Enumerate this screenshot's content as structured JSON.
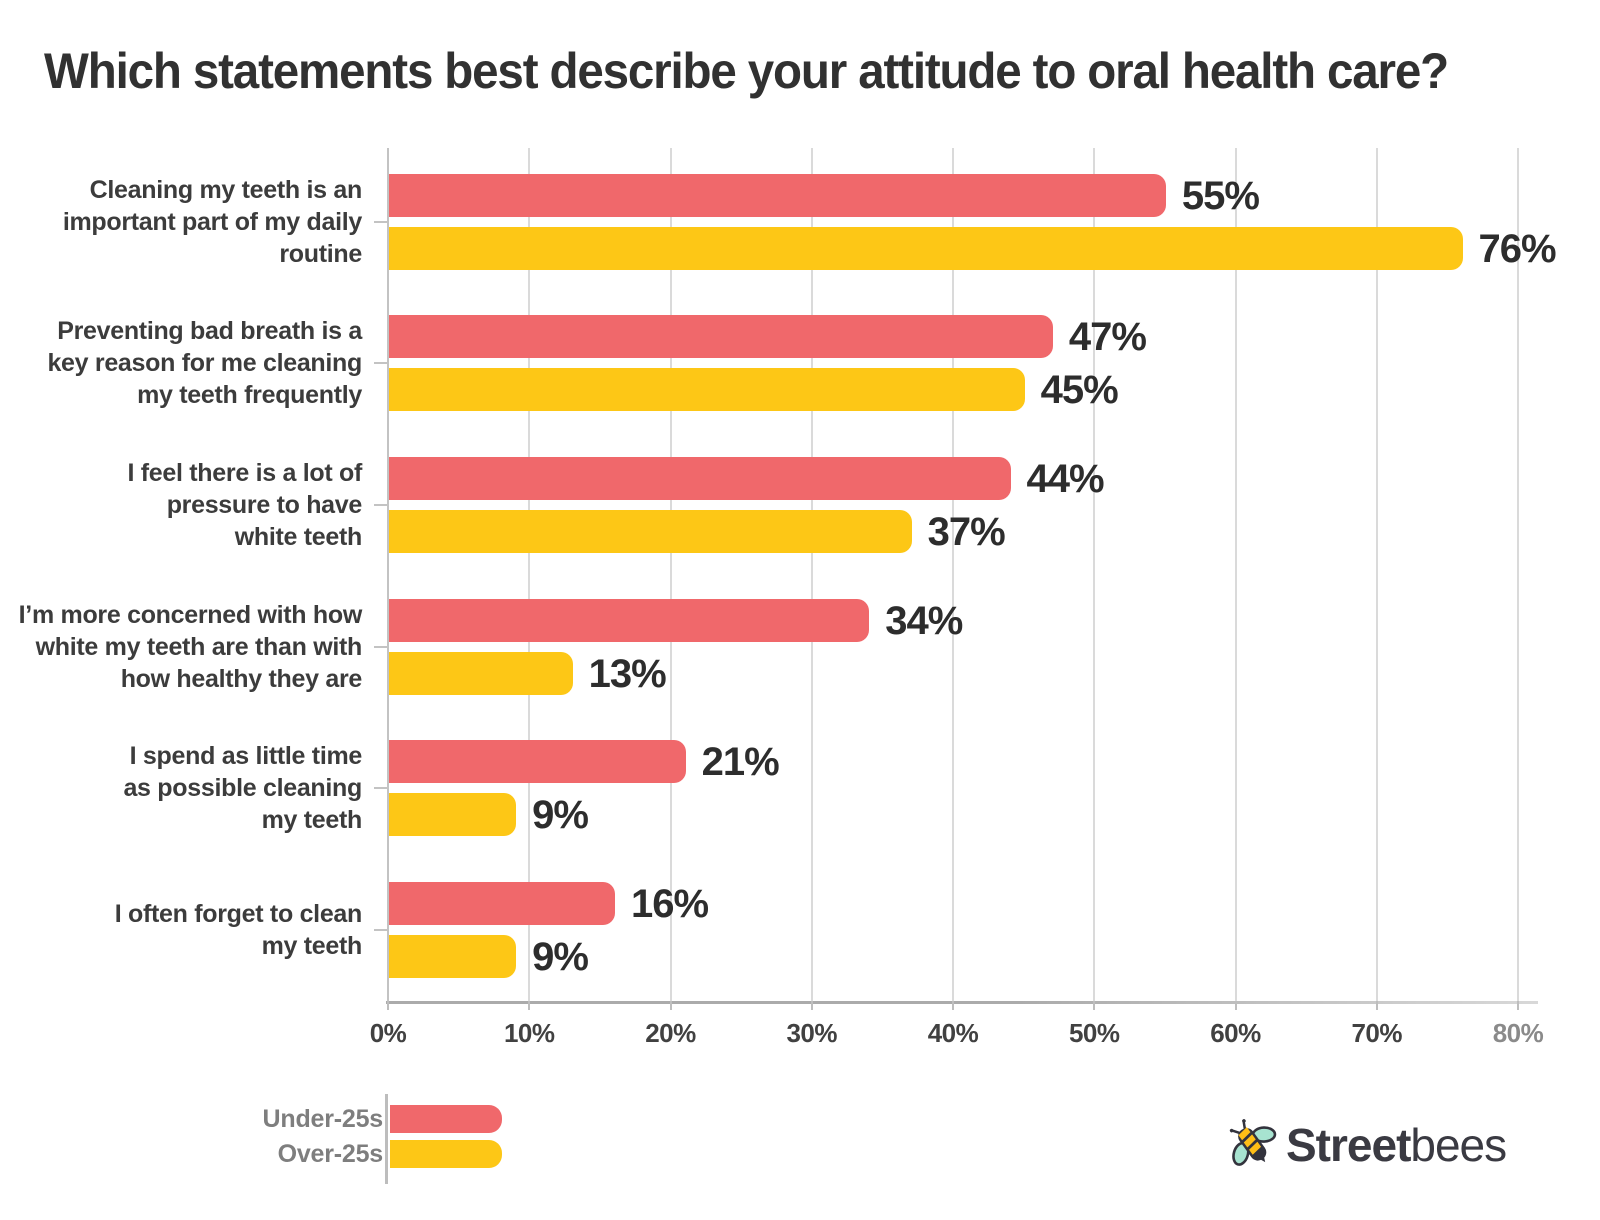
{
  "title": "Which statements best describe your attitude to oral health care?",
  "chart_data": {
    "type": "bar",
    "orientation": "horizontal",
    "title": "Which statements best describe your attitude to oral health care?",
    "categories": [
      "Cleaning my teeth is an important part of my daily routine",
      "Preventing bad breath is a key reason for me cleaning my teeth frequently",
      "I feel there is a lot of pressure to have white teeth",
      "I’m more concerned with how white my teeth are than with how healthy they are",
      "I spend as little time as possible cleaning my teeth",
      "I often forget to clean my teeth"
    ],
    "category_display": [
      "Cleaning my teeth is an\nimportant part of my daily\nroutine",
      "Preventing bad breath is a\nkey reason for me cleaning\nmy teeth frequently",
      "I feel there is a lot of\npressure to have\nwhite teeth",
      "I’m more concerned with how\nwhite my teeth are than with\nhow healthy they are",
      "I spend as little time\nas possible cleaning\nmy teeth",
      "I often forget to clean\nmy teeth"
    ],
    "series": [
      {
        "name": "Under-25s",
        "color": "#F0686B",
        "values": [
          55,
          47,
          44,
          34,
          21,
          16
        ]
      },
      {
        "name": "Over-25s",
        "color": "#FDC716",
        "values": [
          76,
          45,
          37,
          13,
          9,
          9
        ]
      }
    ],
    "value_labels": [
      [
        "55%",
        "76%"
      ],
      [
        "47%",
        "45%"
      ],
      [
        "44%",
        "37%"
      ],
      [
        "34%",
        "13%"
      ],
      [
        "21%",
        "9%"
      ],
      [
        "16%",
        "9%"
      ]
    ],
    "x_ticks": [
      "0%",
      "10%",
      "20%",
      "30%",
      "40%",
      "50%",
      "60%",
      "70%",
      "80%"
    ],
    "xlim": [
      0,
      80
    ],
    "grid": true,
    "legend_position": "bottom-left"
  },
  "legend": {
    "items": [
      {
        "label": "Under-25s",
        "color": "#F0686B"
      },
      {
        "label": "Over-25s",
        "color": "#FDC716"
      }
    ]
  },
  "logo": {
    "icon": "bee-icon",
    "text_bold": "Street",
    "text_light": "bees"
  },
  "colors": {
    "under_25s": "#F0686B",
    "over_25s": "#FDC716",
    "title_text": "#313131",
    "value_text": "#2D2D2D",
    "category_text": "#3C3C3C",
    "grid": "#DADADA",
    "axis": "#C3C3C3",
    "legend_text": "#7E7E7E",
    "logo_text": "#3A3A42",
    "bee_body": "#FFBE16",
    "bee_wing": "#A7E3D0"
  }
}
